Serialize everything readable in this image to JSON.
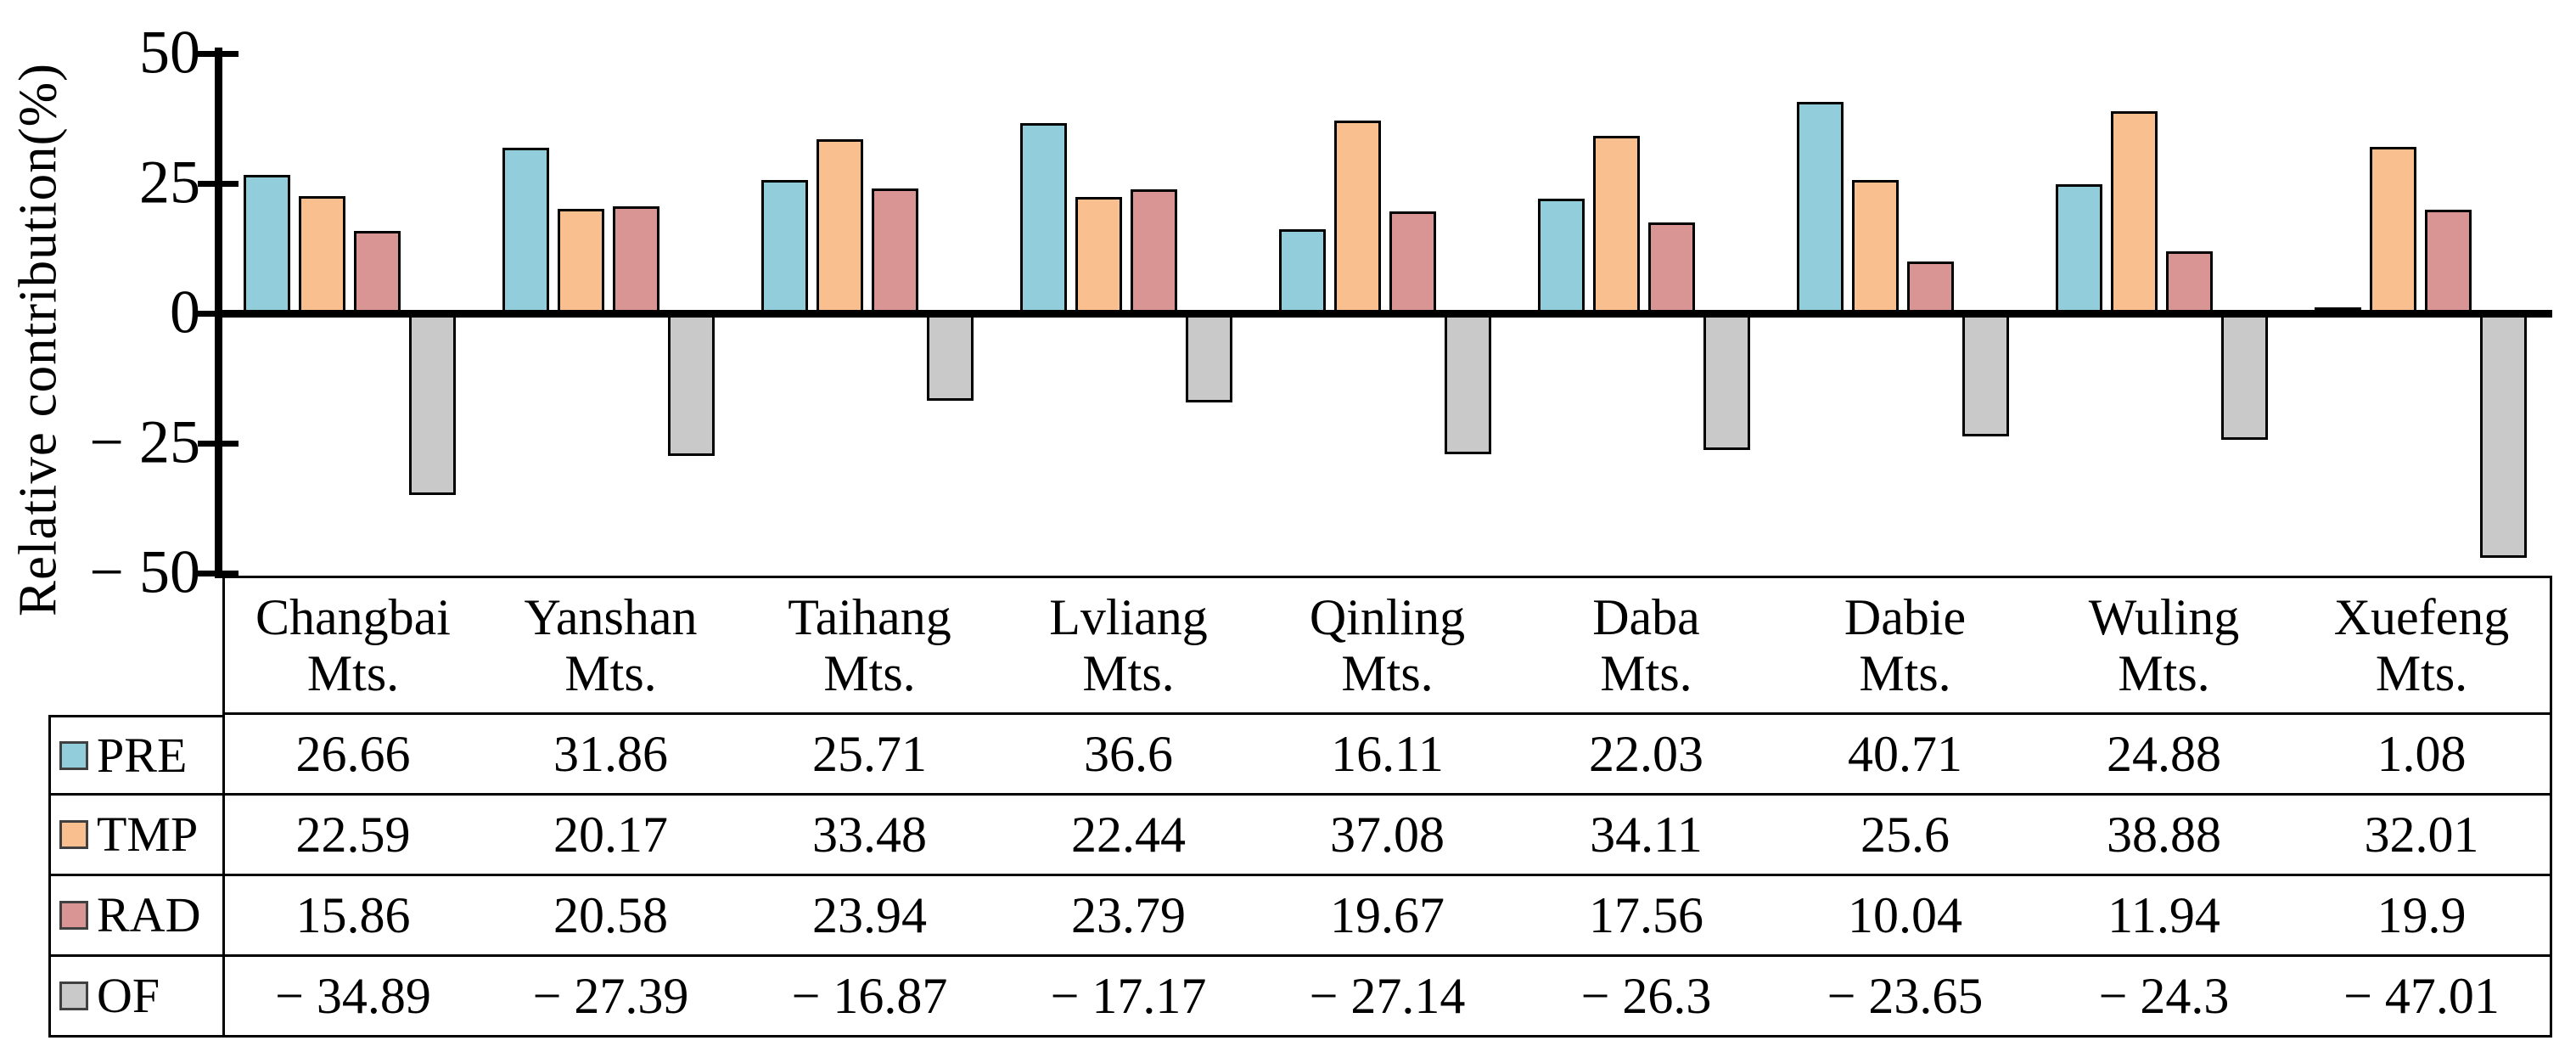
{
  "y_axis": {
    "title": "Relative contribution(%)",
    "ticks": [
      {
        "label": "50",
        "value": 50
      },
      {
        "label": "25",
        "value": 25
      },
      {
        "label": "0",
        "value": 0
      },
      {
        "label": "− 25",
        "value": -25
      },
      {
        "label": "− 50",
        "value": -50
      }
    ],
    "range": [
      -50,
      50
    ]
  },
  "chart_data": {
    "type": "bar",
    "title": "",
    "xlabel": "",
    "ylabel": "Relative contribution(%)",
    "ylim": [
      -50,
      50
    ],
    "grid": false,
    "legend_position": "table-left-column",
    "categories": [
      "Changbai Mts.",
      "Yanshan Mts.",
      "Taihang Mts.",
      "Lvliang Mts.",
      "Qinling Mts.",
      "Daba Mts.",
      "Dabie Mts.",
      "Wuling Mts.",
      "Xuefeng Mts."
    ],
    "category_line2": "Mts.",
    "series": [
      {
        "name": "PRE",
        "color": "#92CDDC",
        "values": [
          26.66,
          31.86,
          25.71,
          36.6,
          16.11,
          22.03,
          40.71,
          24.88,
          1.08
        ]
      },
      {
        "name": "TMP",
        "color": "#FABF8F",
        "values": [
          22.59,
          20.17,
          33.48,
          22.44,
          37.08,
          34.11,
          25.6,
          38.88,
          32.01
        ]
      },
      {
        "name": "RAD",
        "color": "#D99593",
        "values": [
          15.86,
          20.58,
          23.94,
          23.79,
          19.67,
          17.56,
          10.04,
          11.94,
          19.9
        ]
      },
      {
        "name": "OF",
        "color": "#C9C9C9",
        "values": [
          -34.89,
          -27.39,
          -16.87,
          -17.17,
          -27.14,
          -26.3,
          -23.65,
          -24.3,
          -47.01
        ]
      }
    ],
    "colors": {
      "bar_outline": "#000000",
      "axis": "#000000",
      "table_border": "#000000",
      "swatch_border": "#404040",
      "background": "#FFFFFF"
    }
  }
}
